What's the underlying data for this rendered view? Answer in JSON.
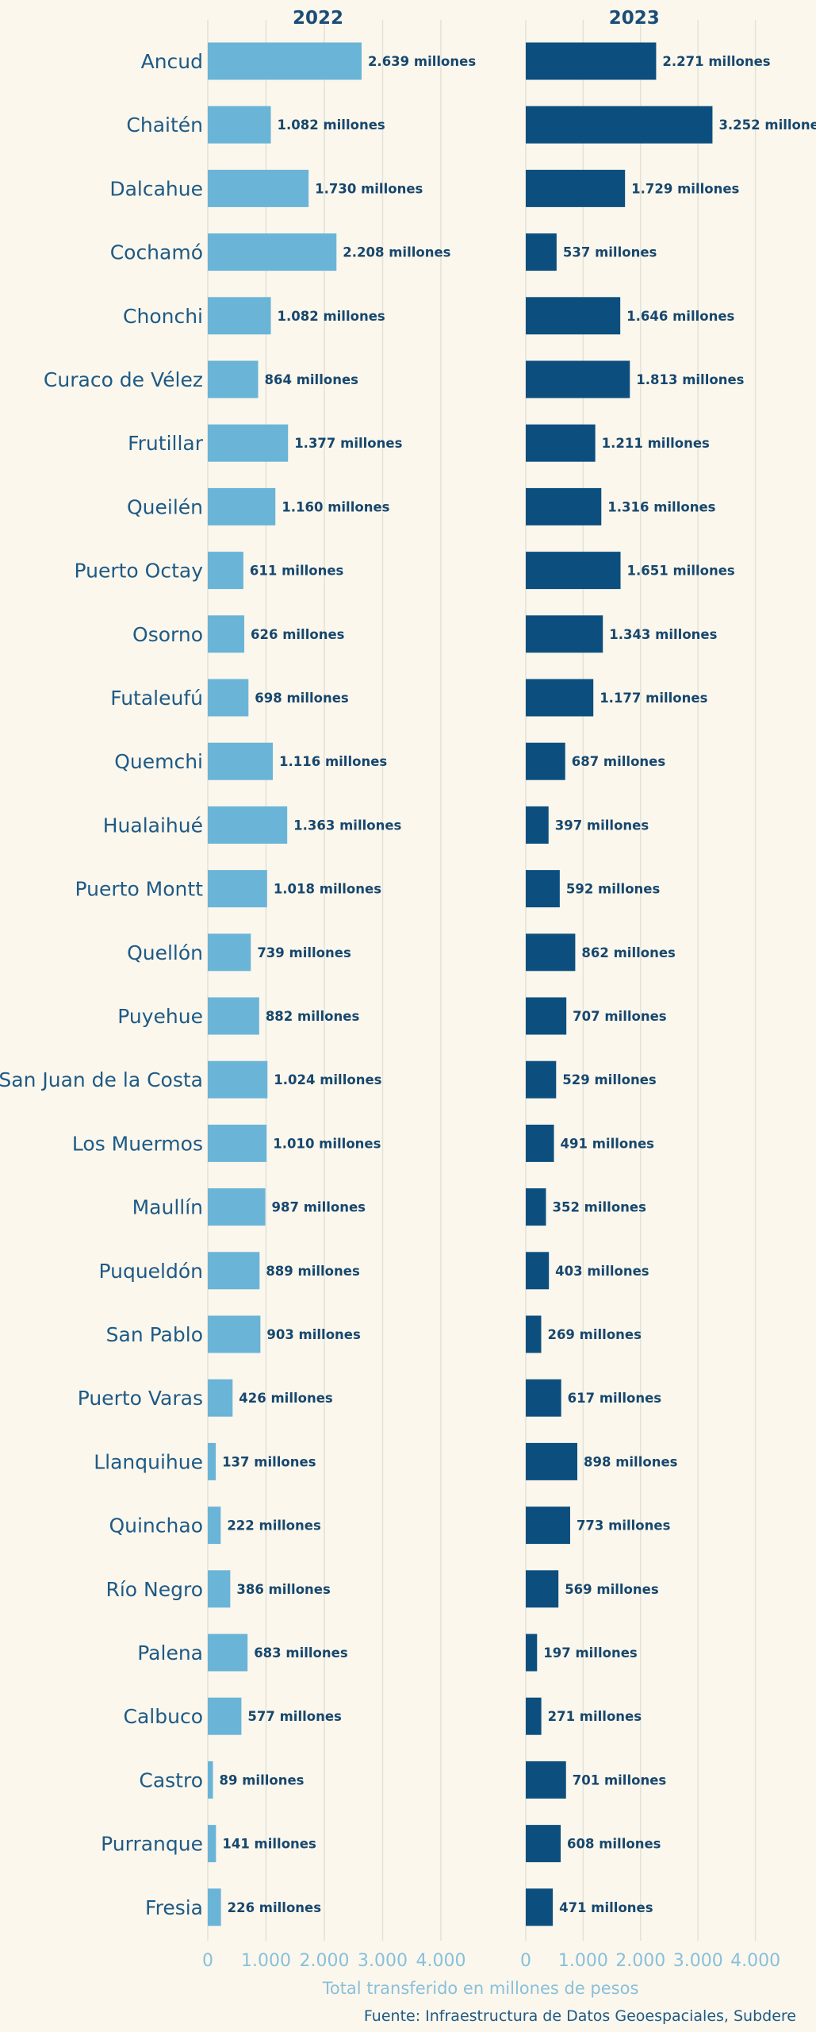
{
  "chart_data": {
    "type": "bar",
    "orientation": "horizontal",
    "xlabel": "Total transferido en millones de pesos",
    "source": "Fuente: Infraestructura de Datos Geoespaciales, Subdere",
    "value_suffix": " millones",
    "xlim": [
      0,
      4000
    ],
    "x_ticks": [
      0,
      1000,
      2000,
      3000,
      4000
    ],
    "x_tick_labels": [
      "0",
      "1.000",
      "2.000",
      "3.000",
      "4.000"
    ],
    "grid": true,
    "categories": [
      "Ancud",
      "Chaitén",
      "Dalcahue",
      "Cochamó",
      "Chonchi",
      "Curaco de Vélez",
      "Frutillar",
      "Queilén",
      "Puerto Octay",
      "Osorno",
      "Futaleufú",
      "Quemchi",
      "Hualaihué",
      "Puerto Montt",
      "Quellón",
      "Puyehue",
      "San Juan de la Costa",
      "Los Muermos",
      "Maullín",
      "Puqueldón",
      "San Pablo",
      "Puerto Varas",
      "Llanquihue",
      "Quinchao",
      "Río Negro",
      "Palena",
      "Calbuco",
      "Castro",
      "Purranque",
      "Fresia"
    ],
    "series": [
      {
        "name": "2022",
        "color": "#6ab4d8",
        "values": [
          2639,
          1082,
          1730,
          2208,
          1082,
          864,
          1377,
          1160,
          611,
          626,
          698,
          1116,
          1363,
          1018,
          739,
          882,
          1024,
          1010,
          987,
          889,
          903,
          426,
          137,
          222,
          386,
          683,
          577,
          89,
          141,
          226
        ],
        "value_labels": [
          "2.639",
          "1.082",
          "1.730",
          "2.208",
          "1.082",
          "864",
          "1.377",
          "1.160",
          "611",
          "626",
          "698",
          "1.116",
          "1.363",
          "1.018",
          "739",
          "882",
          "1.024",
          "1.010",
          "987",
          "889",
          "903",
          "426",
          "137",
          "222",
          "386",
          "683",
          "577",
          "89",
          "141",
          "226"
        ]
      },
      {
        "name": "2023",
        "color": "#0c4f7f",
        "values": [
          2271,
          3252,
          1729,
          537,
          1646,
          1813,
          1211,
          1316,
          1651,
          1343,
          1177,
          687,
          397,
          592,
          862,
          707,
          529,
          491,
          352,
          403,
          269,
          617,
          898,
          773,
          569,
          197,
          271,
          701,
          608,
          471
        ],
        "value_labels": [
          "2.271",
          "3.252",
          "1.729",
          "537",
          "1.646",
          "1.813",
          "1.211",
          "1.316",
          "1.651",
          "1.343",
          "1.177",
          "687",
          "397",
          "592",
          "862",
          "707",
          "529",
          "491",
          "352",
          "403",
          "269",
          "617",
          "898",
          "773",
          "569",
          "197",
          "271",
          "701",
          "608",
          "471"
        ]
      }
    ]
  }
}
